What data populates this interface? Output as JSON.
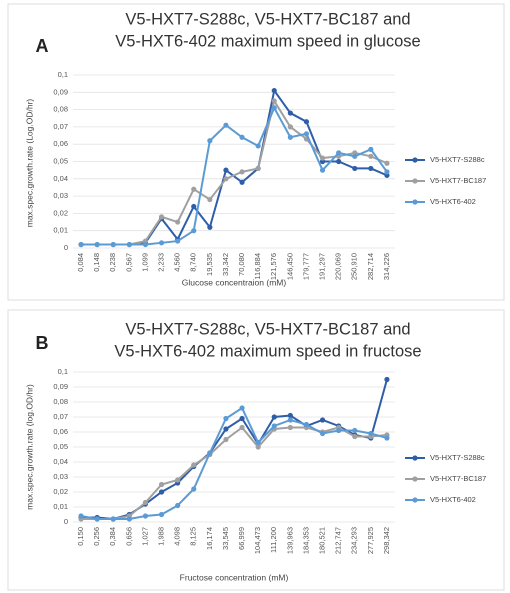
{
  "chart_data": [
    {
      "type": "line",
      "panel_label": "A",
      "title": [
        "V5-HXT7-S288c, V5-HXT7-BC187 and",
        "V5-HXT6-402 maximum speed in glucose"
      ],
      "y_label": "max.spec.growth.rate (Log.OD/hr)",
      "x_label": "Glucose concentraion (mM)",
      "categories": [
        "0,084",
        "0,148",
        "0,238",
        "0,567",
        "1,099",
        "2,233",
        "4,560",
        "8,740",
        "19,535",
        "33,342",
        "70,080",
        "116,884",
        "121,576",
        "146,450",
        "179,777",
        "191,297",
        "220,069",
        "250,910",
        "282,714",
        "314,226"
      ],
      "ylim": [
        0,
        0.1
      ],
      "yticks": [
        0,
        {
          "value": 0.01,
          "label": "0,01"
        },
        {
          "value": 0.02,
          "label": "0,02"
        },
        {
          "value": 0.03,
          "label": "0,03"
        },
        {
          "value": 0.04,
          "label": "0,04"
        },
        {
          "value": 0.05,
          "label": "0,05"
        },
        {
          "value": 0.06,
          "label": "0,06"
        },
        {
          "value": 0.07,
          "label": "0,07"
        },
        {
          "value": 0.08,
          "label": "0,08"
        },
        {
          "value": 0.09,
          "label": "0,09"
        },
        {
          "value": 0.1,
          "label": "0,1"
        }
      ],
      "grid": true,
      "legend": "right",
      "series": [
        {
          "name": "V5-HXT7-S288c",
          "color": "#2f5ea8",
          "values": [
            0.002,
            0.002,
            0.002,
            0.002,
            0.003,
            0.017,
            0.005,
            0.024,
            0.012,
            0.045,
            0.038,
            0.046,
            0.091,
            0.078,
            0.073,
            0.05,
            0.05,
            0.046,
            0.046,
            0.042
          ]
        },
        {
          "name": "V5-HXT7-BC187",
          "color": "#a0a0a0",
          "values": [
            0.002,
            0.002,
            0.002,
            0.002,
            0.004,
            0.018,
            0.015,
            0.034,
            0.028,
            0.04,
            0.044,
            0.046,
            0.085,
            0.07,
            0.063,
            0.052,
            0.053,
            0.055,
            0.053,
            0.049
          ]
        },
        {
          "name": "V5-HXT6-402",
          "color": "#5b9bd5",
          "values": [
            0.002,
            0.002,
            0.002,
            0.002,
            0.002,
            0.003,
            0.004,
            0.01,
            0.062,
            0.071,
            0.064,
            0.059,
            0.081,
            0.064,
            0.066,
            0.045,
            0.055,
            0.053,
            0.057,
            0.044
          ]
        }
      ]
    },
    {
      "type": "line",
      "panel_label": "B",
      "title": [
        "V5-HXT7-S288c, V5-HXT7-BC187 and",
        "V5-HXT6-402 maximum speed in fructose"
      ],
      "y_label": "max.spec.growth.rate (log.OD/hr)",
      "x_label": "Fructose concentration (mM)",
      "categories": [
        "0,150",
        "0,256",
        "0,384",
        "0,656",
        "1,027",
        "1,988",
        "4,098",
        "8,125",
        "16,174",
        "33,545",
        "66,999",
        "104,473",
        "111,200",
        "139,963",
        "184,353",
        "180,521",
        "212,747",
        "234,293",
        "277,925",
        "298,342"
      ],
      "ylim": [
        0,
        0.1
      ],
      "yticks": [
        0,
        {
          "value": 0.01,
          "label": "0,01"
        },
        {
          "value": 0.02,
          "label": "0,02"
        },
        {
          "value": 0.03,
          "label": "0,03"
        },
        {
          "value": 0.04,
          "label": "0,04"
        },
        {
          "value": 0.05,
          "label": "0,05"
        },
        {
          "value": 0.06,
          "label": "0,06"
        },
        {
          "value": 0.07,
          "label": "0,07"
        },
        {
          "value": 0.08,
          "label": "0,08"
        },
        {
          "value": 0.09,
          "label": "0,09"
        },
        {
          "value": 0.1,
          "label": "0,1"
        }
      ],
      "grid": true,
      "legend": "right",
      "series": [
        {
          "name": "V5-HXT7-S288c",
          "color": "#2f5ea8",
          "values": [
            0.003,
            0.003,
            0.002,
            0.005,
            0.012,
            0.02,
            0.026,
            0.037,
            0.046,
            0.062,
            0.069,
            0.052,
            0.07,
            0.071,
            0.064,
            0.068,
            0.064,
            0.058,
            0.056,
            0.095
          ]
        },
        {
          "name": "V5-HXT7-BC187",
          "color": "#a0a0a0",
          "values": [
            0.002,
            0.002,
            0.002,
            0.004,
            0.013,
            0.025,
            0.028,
            0.038,
            0.045,
            0.055,
            0.063,
            0.05,
            0.062,
            0.063,
            0.063,
            0.06,
            0.063,
            0.057,
            0.057,
            0.058
          ]
        },
        {
          "name": "V5-HXT6-402",
          "color": "#5b9bd5",
          "values": [
            0.004,
            0.002,
            0.002,
            0.002,
            0.004,
            0.005,
            0.011,
            0.022,
            0.046,
            0.069,
            0.076,
            0.053,
            0.064,
            0.068,
            0.065,
            0.059,
            0.061,
            0.061,
            0.059,
            0.056
          ]
        }
      ]
    }
  ]
}
